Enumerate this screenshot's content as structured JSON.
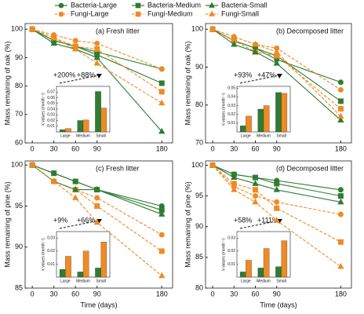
{
  "chart_data": [
    {
      "type": "line",
      "title": "(a) Fresh litter",
      "ylabel": "Mass remaining of oak (%)",
      "x": [
        0,
        30,
        60,
        90,
        180
      ],
      "xlim": [
        -10,
        195
      ],
      "xticks": [
        0,
        30,
        60,
        90,
        180
      ],
      "ylim": [
        60,
        102
      ],
      "yticks": [
        60,
        70,
        80,
        90,
        100
      ],
      "series": [
        {
          "name": "Bacteria-Large",
          "color": "#2e7d32",
          "marker": "circle",
          "dashed": false,
          "values": [
            100,
            96,
            94,
            92,
            86
          ]
        },
        {
          "name": "Fungi-Large",
          "color": "#f08a24",
          "marker": "circle",
          "dashed": true,
          "values": [
            100,
            98,
            96,
            95,
            86
          ]
        },
        {
          "name": "Bacteria-Medium",
          "color": "#2e7d32",
          "marker": "square",
          "dashed": false,
          "values": [
            100,
            96,
            94,
            91,
            81
          ]
        },
        {
          "name": "Fungi-Medium",
          "color": "#f08a24",
          "marker": "square",
          "dashed": true,
          "values": [
            100,
            97,
            94,
            93,
            78
          ]
        },
        {
          "name": "Bacteria-Small",
          "color": "#2e7d32",
          "marker": "triangle",
          "dashed": false,
          "values": [
            100,
            95,
            93,
            90,
            64
          ]
        },
        {
          "name": "Fungi-Small",
          "color": "#f08a24",
          "marker": "triangle",
          "dashed": true,
          "values": [
            100,
            97,
            93,
            88,
            74
          ]
        }
      ],
      "inset": {
        "type": "bar",
        "ylabel": "k values (month⁻¹)",
        "categories": [
          "Large",
          "Medium",
          "Small"
        ],
        "ylim": [
          0,
          0.08
        ],
        "yticks": [
          0.01,
          0.02,
          0.03,
          0.04,
          0.05,
          0.06,
          0.07
        ],
        "series": [
          {
            "color": "#2e7d32",
            "values": [
              0.004,
              0.02,
              0.071
            ]
          },
          {
            "color": "#f08a24",
            "values": [
              0.006,
              0.021,
              0.042
            ]
          }
        ],
        "annotations": [
          {
            "text": "+200%",
            "color": "#2e9e3a"
          },
          {
            "text": "+88%",
            "color": "#f08a24"
          }
        ]
      }
    },
    {
      "type": "line",
      "title": "(b) Decomposed litter",
      "ylabel": "Mass remaining of oak (%)",
      "x": [
        0,
        30,
        60,
        90,
        180
      ],
      "xlim": [
        -10,
        195
      ],
      "xticks": [
        0,
        30,
        60,
        90,
        180
      ],
      "ylim": [
        70,
        101.5
      ],
      "yticks": [
        70,
        80,
        90,
        100
      ],
      "series": [
        {
          "name": "Bacteria-Large",
          "color": "#2e7d32",
          "marker": "circle",
          "dashed": false,
          "values": [
            100,
            97,
            95,
            92,
            86
          ]
        },
        {
          "name": "Fungi-Large",
          "color": "#f08a24",
          "marker": "circle",
          "dashed": true,
          "values": [
            100,
            98,
            96,
            95,
            84
          ]
        },
        {
          "name": "Bacteria-Medium",
          "color": "#2e7d32",
          "marker": "square",
          "dashed": false,
          "values": [
            100,
            97,
            95,
            93,
            81
          ]
        },
        {
          "name": "Fungi-Medium",
          "color": "#f08a24",
          "marker": "square",
          "dashed": true,
          "values": [
            100,
            97,
            94,
            93,
            79
          ]
        },
        {
          "name": "Bacteria-Small",
          "color": "#2e7d32",
          "marker": "triangle",
          "dashed": false,
          "values": [
            100,
            96,
            94,
            91,
            76
          ]
        },
        {
          "name": "Fungi-Small",
          "color": "#f08a24",
          "marker": "triangle",
          "dashed": true,
          "values": [
            100,
            98,
            96,
            94,
            77
          ]
        }
      ],
      "inset": {
        "type": "bar",
        "ylabel": "k values (month⁻¹)",
        "categories": [
          "Large",
          "Medium",
          "Small"
        ],
        "ylim": [
          0,
          0.052
        ],
        "yticks": [
          0.01,
          0.02,
          0.03,
          0.04,
          0.05
        ],
        "series": [
          {
            "color": "#2e7d32",
            "values": [
              0.007,
              0.026,
              0.045
            ]
          },
          {
            "color": "#f08a24",
            "values": [
              0.018,
              0.03,
              0.044
            ]
          }
        ],
        "annotations": [
          {
            "text": "+93%",
            "color": "#2e9e3a"
          },
          {
            "text": "+47%",
            "color": "#f08a24"
          }
        ]
      }
    },
    {
      "type": "line",
      "title": "(c) Fresh litter",
      "ylabel": "Mass remaining of pine (%)",
      "xlabel": "Time (days)",
      "x": [
        0,
        30,
        60,
        90,
        180
      ],
      "xlim": [
        -10,
        195
      ],
      "xticks": [
        0,
        30,
        60,
        90,
        180
      ],
      "ylim": [
        85,
        100.5
      ],
      "yticks": [
        85,
        90,
        95,
        100
      ],
      "series": [
        {
          "name": "Bacteria-Large",
          "color": "#2e7d32",
          "marker": "circle",
          "dashed": false,
          "values": [
            100,
            99,
            98,
            97,
            95
          ]
        },
        {
          "name": "Fungi-Large",
          "color": "#f08a24",
          "marker": "circle",
          "dashed": true,
          "values": [
            100,
            98,
            97,
            96,
            91.5
          ]
        },
        {
          "name": "Bacteria-Medium",
          "color": "#2e7d32",
          "marker": "square",
          "dashed": false,
          "values": [
            100,
            99,
            98,
            97,
            94.5
          ]
        },
        {
          "name": "Fungi-Medium",
          "color": "#f08a24",
          "marker": "square",
          "dashed": true,
          "values": [
            100,
            98,
            97,
            95,
            89.5
          ]
        },
        {
          "name": "Bacteria-Small",
          "color": "#2e7d32",
          "marker": "triangle",
          "dashed": false,
          "values": [
            100,
            98,
            97,
            97,
            94
          ]
        },
        {
          "name": "Fungi-Small",
          "color": "#f08a24",
          "marker": "triangle",
          "dashed": true,
          "values": [
            100,
            98,
            96,
            93,
            86.5
          ]
        }
      ],
      "inset": {
        "type": "bar",
        "ylabel": "k values (month⁻¹)",
        "categories": [
          "Large",
          "Medium",
          "Small"
        ],
        "ylim": [
          0,
          0.035
        ],
        "yticks": [
          0.01,
          0.02,
          0.03
        ],
        "series": [
          {
            "color": "#2e7d32",
            "values": [
              0.006,
              0.004,
              0.007
            ]
          },
          {
            "color": "#f08a24",
            "values": [
              0.016,
              0.02,
              0.027
            ]
          }
        ],
        "annotations": [
          {
            "text": "+9%",
            "color": "#2e9e3a"
          },
          {
            "text": "+66%",
            "color": "#f08a24"
          }
        ]
      }
    },
    {
      "type": "line",
      "title": "(d) Decomposed litter",
      "ylabel": "Mass remaining of pine (%)",
      "xlabel": "Time (days)",
      "x": [
        0,
        30,
        60,
        90,
        180
      ],
      "xlim": [
        -10,
        195
      ],
      "xticks": [
        0,
        30,
        60,
        90,
        180
      ],
      "ylim": [
        80,
        100.7
      ],
      "yticks": [
        80,
        85,
        90,
        95,
        100
      ],
      "series": [
        {
          "name": "Bacteria-Large",
          "color": "#2e7d32",
          "marker": "circle",
          "dashed": false,
          "values": [
            100,
            98.5,
            98,
            97.5,
            96
          ]
        },
        {
          "name": "Fungi-Large",
          "color": "#f08a24",
          "marker": "circle",
          "dashed": true,
          "values": [
            100,
            96.5,
            95,
            94,
            92
          ]
        },
        {
          "name": "Bacteria-Medium",
          "color": "#2e7d32",
          "marker": "square",
          "dashed": false,
          "values": [
            100,
            98.5,
            98,
            97,
            95
          ]
        },
        {
          "name": "Fungi-Medium",
          "color": "#f08a24",
          "marker": "square",
          "dashed": true,
          "values": [
            100,
            97,
            96,
            93,
            87.5
          ]
        },
        {
          "name": "Bacteria-Small",
          "color": "#2e7d32",
          "marker": "triangle",
          "dashed": false,
          "values": [
            100,
            98,
            97,
            96,
            94
          ]
        },
        {
          "name": "Fungi-Small",
          "color": "#f08a24",
          "marker": "triangle",
          "dashed": true,
          "values": [
            100,
            96,
            94,
            91,
            83.5
          ]
        }
      ],
      "inset": {
        "type": "bar",
        "ylabel": "k values (month⁻¹)",
        "categories": [
          "Large",
          "Medium",
          "Small"
        ],
        "ylim": [
          0,
          0.035
        ],
        "yticks": [
          0.01,
          0.02,
          0.03
        ],
        "series": [
          {
            "color": "#2e7d32",
            "values": [
              0.004,
              0.007,
              0.008
            ]
          },
          {
            "color": "#f08a24",
            "values": [
              0.013,
              0.022,
              0.028
            ]
          }
        ],
        "annotations": [
          {
            "text": "+58%",
            "color": "#2e9e3a"
          },
          {
            "text": "+111%",
            "color": "#f08a24"
          }
        ]
      }
    }
  ]
}
